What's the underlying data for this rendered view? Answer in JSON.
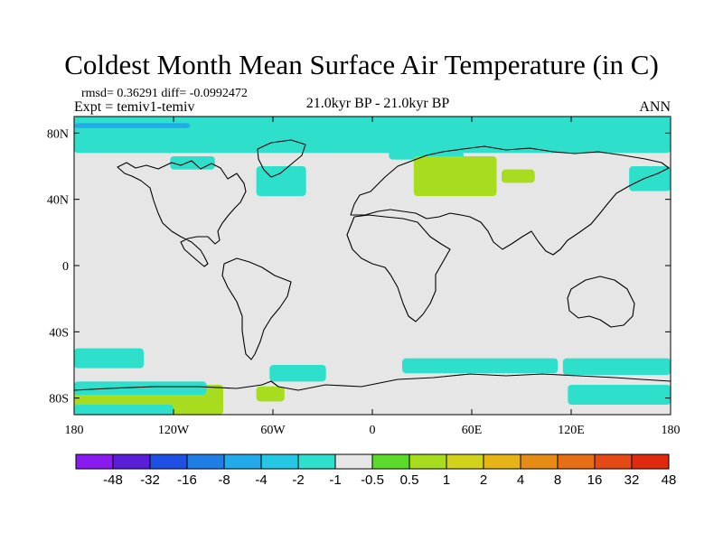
{
  "title": "Coldest Month Mean Surface Air Temperature (in C)",
  "stats_text": "rmsd= 0.36291 diff= -0.0992472",
  "experiment_text": "Expt = temiv1-temiv",
  "period_text": "21.0kyr BP - 21.0kyr BP",
  "season_text": "ANN",
  "map": {
    "projection": "cylindrical-equidistant",
    "lon_range": [
      -180,
      180
    ],
    "lat_range": [
      -90,
      90
    ],
    "lat_ticks": [
      {
        "value": 80,
        "label": "80N"
      },
      {
        "value": 40,
        "label": "40N"
      },
      {
        "value": 0,
        "label": "0"
      },
      {
        "value": -40,
        "label": "40S"
      },
      {
        "value": -80,
        "label": "80S"
      }
    ],
    "lon_ticks": [
      {
        "value": -180,
        "label": "180"
      },
      {
        "value": -120,
        "label": "120W"
      },
      {
        "value": -60,
        "label": "60W"
      },
      {
        "value": 0,
        "label": "0"
      },
      {
        "value": 60,
        "label": "60E"
      },
      {
        "value": 120,
        "label": "120E"
      },
      {
        "value": 180,
        "label": "180"
      }
    ],
    "background_color": "#e6e6e6",
    "coastline_color": "#000000"
  },
  "colorbar": {
    "colors": [
      "#8a1bf0",
      "#5a1ed8",
      "#1e50e6",
      "#1e7ee6",
      "#22aaea",
      "#25c8e4",
      "#2ee0cc",
      "#e6e6e6",
      "#5ada2a",
      "#a8dc1e",
      "#d2d21a",
      "#e6b414",
      "#e68c14",
      "#e66e14",
      "#e64a14",
      "#e02a10"
    ],
    "labels": [
      "-48",
      "-32",
      "-16",
      "-8",
      "-4",
      "-2",
      "-1",
      "-0.5",
      "0.5",
      "1",
      "2",
      "4",
      "8",
      "16",
      "32",
      "48"
    ]
  },
  "anomaly_regions": [
    {
      "name": "arctic-ocean-band",
      "color": "#2ee0cc",
      "lon": [
        -180,
        180
      ],
      "lat": [
        68,
        90
      ]
    },
    {
      "name": "arctic-cold-strip",
      "color": "#22aaea",
      "lon": [
        -180,
        -110
      ],
      "lat": [
        83,
        86
      ]
    },
    {
      "name": "north-america-northeast",
      "color": "#2ee0cc",
      "lon": [
        -122,
        -95
      ],
      "lat": [
        58,
        66
      ]
    },
    {
      "name": "north-atlantic",
      "color": "#2ee0cc",
      "lon": [
        -70,
        -40
      ],
      "lat": [
        42,
        60
      ]
    },
    {
      "name": "barents-kara",
      "color": "#2ee0cc",
      "lon": [
        10,
        55
      ],
      "lat": [
        64,
        75
      ]
    },
    {
      "name": "north-pacific",
      "color": "#2ee0cc",
      "lon": [
        155,
        180
      ],
      "lat": [
        45,
        60
      ]
    },
    {
      "name": "siberia-warm",
      "color": "#a8dc1e",
      "lon": [
        25,
        75
      ],
      "lat": [
        42,
        66
      ]
    },
    {
      "name": "central-asia-warm",
      "color": "#a8dc1e",
      "lon": [
        78,
        98
      ],
      "lat": [
        50,
        58
      ]
    },
    {
      "name": "southern-ocean-pacific",
      "color": "#2ee0cc",
      "lon": [
        -180,
        -138
      ],
      "lat": [
        -62,
        -50
      ]
    },
    {
      "name": "southern-ocean-atlantic",
      "color": "#2ee0cc",
      "lon": [
        -62,
        -28
      ],
      "lat": [
        -70,
        -60
      ]
    },
    {
      "name": "southern-ocean-indian",
      "color": "#2ee0cc",
      "lon": [
        18,
        112
      ],
      "lat": [
        -65,
        -56
      ]
    },
    {
      "name": "southern-ocean-east",
      "color": "#2ee0cc",
      "lon": [
        115,
        180
      ],
      "lat": [
        -66,
        -56
      ]
    },
    {
      "name": "antarctic-west-warm",
      "color": "#a8dc1e",
      "lon": [
        -180,
        -90
      ],
      "lat": [
        -90,
        -72
      ]
    },
    {
      "name": "antarctic-peninsula-warm",
      "color": "#a8dc1e",
      "lon": [
        -70,
        -53
      ],
      "lat": [
        -82,
        -73
      ]
    },
    {
      "name": "antarctic-coast-west",
      "color": "#2ee0cc",
      "lon": [
        -180,
        -100
      ],
      "lat": [
        -78,
        -70
      ]
    },
    {
      "name": "antarctic-east-cold",
      "color": "#2ee0cc",
      "lon": [
        118,
        180
      ],
      "lat": [
        -84,
        -72
      ]
    },
    {
      "name": "antarctic-east-bottom",
      "color": "#2ee0cc",
      "lon": [
        -180,
        -120
      ],
      "lat": [
        -90,
        -84
      ]
    }
  ]
}
